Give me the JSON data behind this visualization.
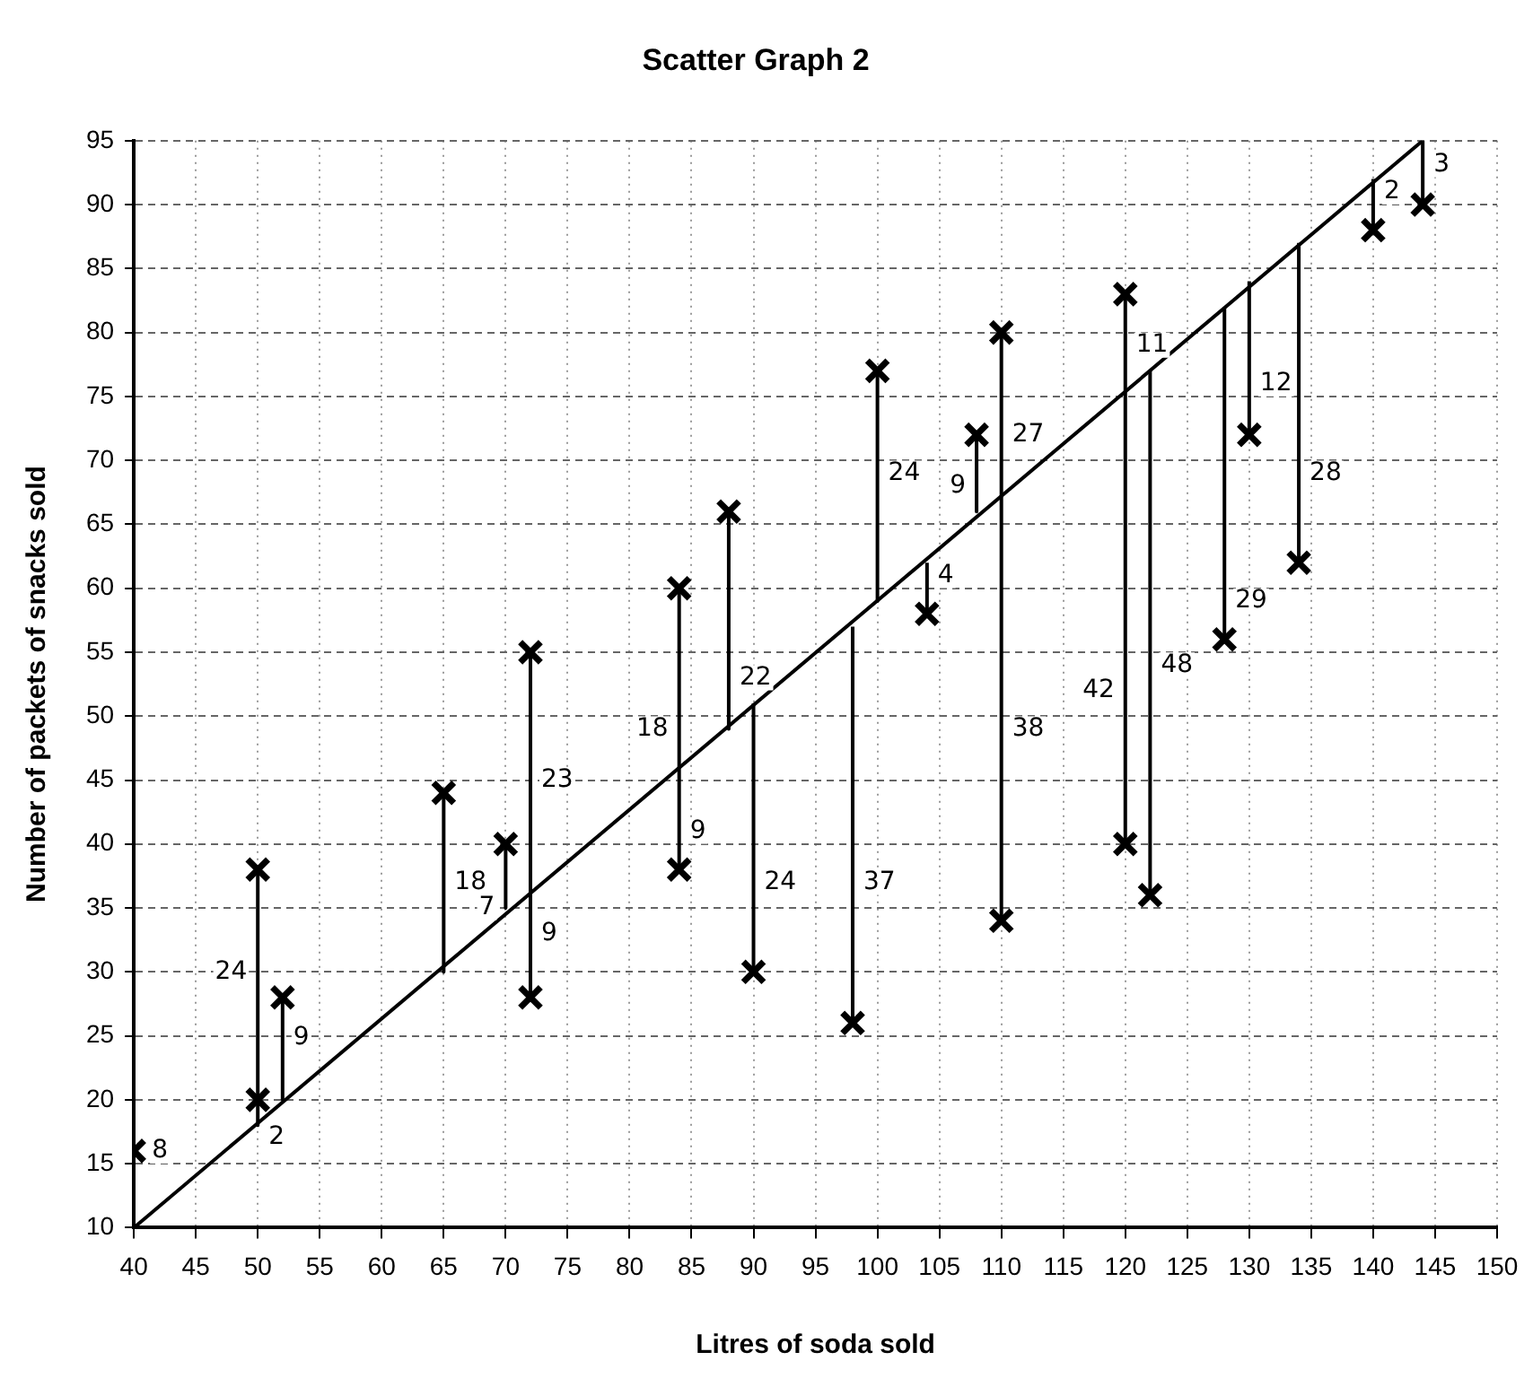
{
  "chart_data": {
    "type": "scatter",
    "title": "Scatter Graph 2",
    "xlabel": "Litres of soda sold",
    "ylabel": "Number of packets of snacks sold",
    "xlim": [
      40,
      150
    ],
    "xticks": [
      40,
      45,
      50,
      55,
      60,
      65,
      70,
      75,
      80,
      85,
      90,
      95,
      100,
      105,
      110,
      115,
      120,
      125,
      130,
      135,
      140,
      145,
      150
    ],
    "ylim": [
      10,
      95
    ],
    "yticks": [
      10,
      15,
      20,
      25,
      30,
      35,
      40,
      45,
      50,
      55,
      60,
      65,
      70,
      75,
      80,
      85,
      90,
      95
    ],
    "grid": true,
    "legend": false,
    "marker": "cross",
    "series": [
      {
        "type": "line",
        "color": "#000000",
        "marker": "none",
        "x": [
          40,
          144
        ],
        "values": [
          10,
          95
        ]
      },
      {
        "type": "line",
        "color": "#000000",
        "marker": "none",
        "x": [
          50,
          50,
          null,
          52,
          52,
          null,
          65,
          65,
          null,
          70,
          70,
          null,
          72,
          72,
          null,
          84,
          84,
          null,
          88,
          88,
          null,
          90,
          90,
          null,
          98,
          98,
          null,
          100,
          100,
          null,
          104,
          104,
          null,
          108,
          108,
          null,
          110,
          110,
          null,
          120,
          120,
          null,
          122,
          122,
          null,
          128,
          128,
          null,
          130,
          130,
          null,
          134,
          134,
          null,
          140,
          140,
          null,
          144,
          144
        ],
        "values": [
          38,
          18,
          null,
          28,
          20,
          null,
          44,
          30,
          null,
          40,
          35,
          null,
          55,
          28,
          null,
          60,
          38,
          null,
          66,
          49,
          null,
          30,
          51,
          null,
          26,
          57,
          null,
          77,
          59,
          null,
          58,
          62,
          null,
          72,
          66,
          null,
          80,
          34,
          null,
          83,
          40,
          null,
          36,
          77,
          null,
          56,
          82,
          null,
          72,
          84,
          null,
          62,
          87,
          null,
          88,
          92,
          null,
          90,
          95
        ]
      },
      {
        "type": "scatter",
        "color": "#000000",
        "x": [
          40,
          50,
          50,
          52,
          65,
          70,
          72,
          72,
          84,
          84,
          88,
          90,
          98,
          100,
          104,
          108,
          110,
          110,
          120,
          120,
          122,
          128,
          130,
          134,
          140,
          144
        ],
        "values": [
          16,
          38,
          20,
          28,
          44,
          40,
          55,
          28,
          60,
          38,
          66,
          30,
          26,
          77,
          58,
          72,
          80,
          34,
          83,
          40,
          36,
          56,
          72,
          62,
          88,
          90
        ]
      }
    ],
    "annotations": [
      {
        "text": "8",
        "x": 40,
        "y": 16
      },
      {
        "text": "24",
        "x": 50,
        "y": 30
      },
      {
        "text": "2",
        "x": 50,
        "y": 19
      },
      {
        "text": "9",
        "x": 52,
        "y": 26
      },
      {
        "text": "18",
        "x": 65,
        "y": 37
      },
      {
        "text": "7",
        "x": 70,
        "y": 37
      },
      {
        "text": "23",
        "x": 72,
        "y": 45
      },
      {
        "text": "9",
        "x": 72,
        "y": 33
      },
      {
        "text": "18",
        "x": 84,
        "y": 49
      },
      {
        "text": "9",
        "x": 84,
        "y": 41
      },
      {
        "text": "22",
        "x": 88,
        "y": 53
      },
      {
        "text": "24",
        "x": 90,
        "y": 37
      },
      {
        "text": "37",
        "x": 98,
        "y": 37
      },
      {
        "text": "24",
        "x": 100,
        "y": 69
      },
      {
        "text": "4",
        "x": 104,
        "y": 61
      },
      {
        "text": "9",
        "x": 108,
        "y": 68
      },
      {
        "text": "27",
        "x": 110,
        "y": 72
      },
      {
        "text": "38",
        "x": 110,
        "y": 49
      },
      {
        "text": "42",
        "x": 120,
        "y": 52
      },
      {
        "text": "11",
        "x": 120,
        "y": 79
      },
      {
        "text": "48",
        "x": 122,
        "y": 54
      },
      {
        "text": "12",
        "x": 130,
        "y": 76
      },
      {
        "text": "29",
        "x": 128,
        "y": 59
      },
      {
        "text": "28",
        "x": 134,
        "y": 69
      },
      {
        "text": "2",
        "x": 140,
        "y": 91
      },
      {
        "text": "3",
        "x": 144,
        "y": 92
      }
    ]
  }
}
